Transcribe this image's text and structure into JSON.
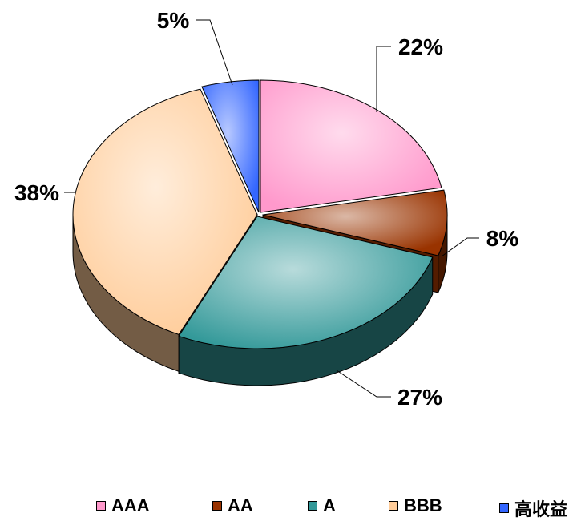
{
  "chart_data": {
    "type": "pie",
    "title": "",
    "categories": [
      "AAA",
      "AA",
      "A",
      "BBB",
      "高收益"
    ],
    "values": [
      22,
      8,
      27,
      38,
      5
    ],
    "labels": [
      "22%",
      "8%",
      "27%",
      "38%",
      "5%"
    ],
    "colors": [
      "#ff99cc",
      "#993300",
      "#339999",
      "#ffcc99",
      "#3366ff"
    ],
    "style": "3d-exploded-slices",
    "legend_position": "bottom"
  }
}
